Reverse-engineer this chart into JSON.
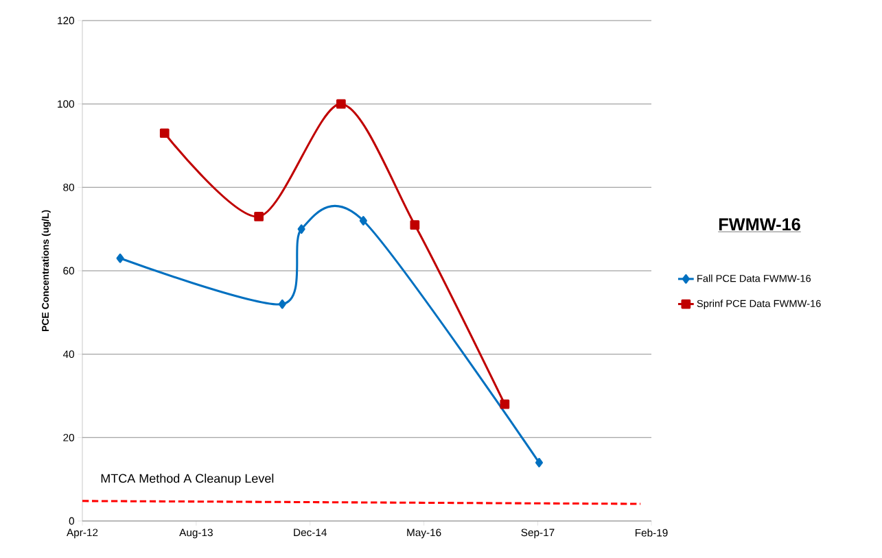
{
  "chart_data": {
    "type": "line",
    "title": "FWMW-16",
    "ylabel": "PCE Concentrations (ug/L)",
    "xlim": [
      "2012-04-01",
      "2019-02-03"
    ],
    "xticks": [
      {
        "value": "2012-04-01",
        "label": "Apr-12"
      },
      {
        "value": "2013-08-14",
        "label": "Aug-13"
      },
      {
        "value": "2014-12-27",
        "label": "Dec-14"
      },
      {
        "value": "2016-05-10",
        "label": "May-16"
      },
      {
        "value": "2017-09-22",
        "label": "Sep-17"
      },
      {
        "value": "2019-02-03",
        "label": "Feb-19"
      }
    ],
    "ylim": [
      0,
      120
    ],
    "yticks": [
      0,
      20,
      40,
      60,
      80,
      100,
      120
    ],
    "grid": "y",
    "legend": "right",
    "series": [
      {
        "name": "Fall PCE Data FWMW-16",
        "color": "#0070c0",
        "marker": "diamond",
        "x": [
          "2012-09-14",
          "2014-08-27",
          "2014-11-19",
          "2015-08-18",
          "2017-09-28"
        ],
        "values": [
          63,
          52,
          70,
          72,
          14
        ]
      },
      {
        "name": "Sprinf PCE Data FWMW-16",
        "color": "#c00000",
        "marker": "square",
        "x": [
          "2013-03-28",
          "2014-05-16",
          "2015-05-12",
          "2016-03-31",
          "2017-04-30"
        ],
        "values": [
          93,
          73,
          100,
          71,
          28
        ]
      },
      {
        "color": "#ff0000",
        "marker": "none",
        "line_style": "dashed",
        "x": [
          "2012-04-01",
          "2018-12-17"
        ],
        "values": [
          4.8,
          4.1
        ]
      }
    ],
    "annotations": [
      "MTCA Method A Cleanup Level"
    ]
  }
}
